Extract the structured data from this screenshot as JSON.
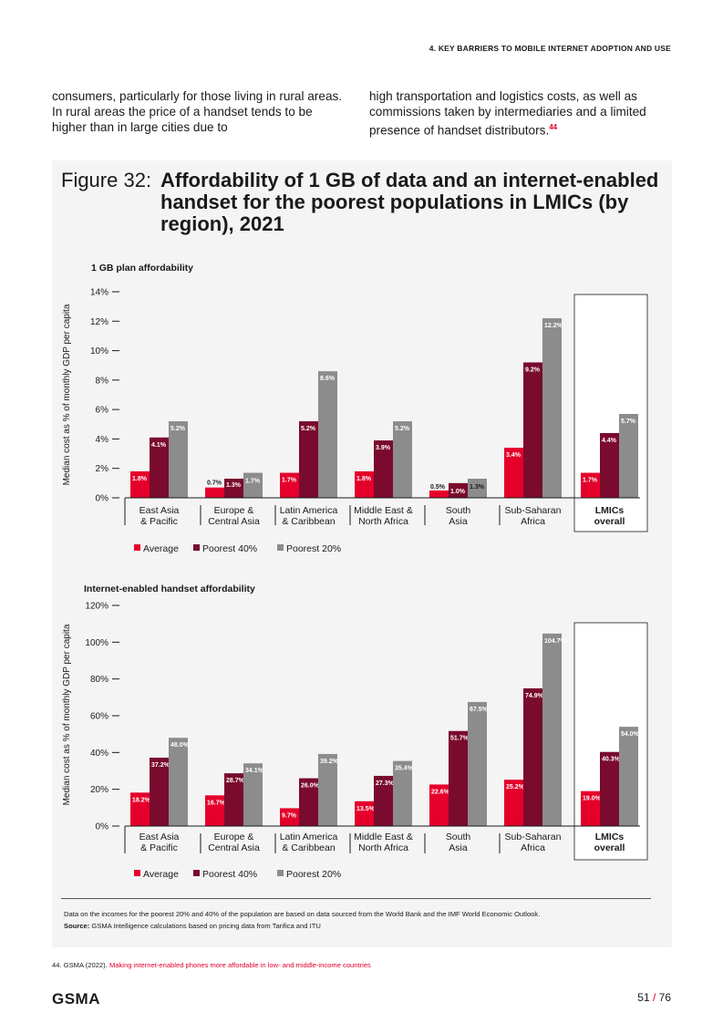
{
  "header": {
    "section": "4. KEY BARRIERS TO MOBILE INTERNET ADOPTION AND USE"
  },
  "intro": {
    "left": "consumers, particularly for those living in rural areas. In rural areas the price of a handset tends to be higher than in large cities due to",
    "right": "high transportation and logistics costs, as well as commissions taken by intermediaries and a limited presence of handset distributors.",
    "right_ref": "44"
  },
  "figure": {
    "label": "Figure 32:",
    "title": "Affordability of 1 GB of data and an internet-enabled handset for the poorest populations in LMICs (by region), 2021"
  },
  "colors": {
    "average": "#e4002b",
    "poorest40": "#7a0b2e",
    "poorest20": "#8c8c8c"
  },
  "chart_data": [
    {
      "type": "bar",
      "title": "1 GB plan affordability",
      "ylabel": "Median cost as % of monthly GDP per capita",
      "ylim": [
        0,
        14
      ],
      "yticks": [
        "0%",
        "2%",
        "4%",
        "6%",
        "8%",
        "10%",
        "12%",
        "14%"
      ],
      "categories": [
        [
          "East Asia",
          "& Pacific"
        ],
        [
          "Europe &",
          "Central Asia"
        ],
        [
          "Latin America",
          "& Caribbean"
        ],
        [
          "Middle East &",
          "North Africa"
        ],
        [
          "South",
          "Asia"
        ],
        [
          "Sub-Saharan",
          "Africa"
        ],
        [
          "LMICs",
          "overall"
        ]
      ],
      "series": [
        {
          "name": "Average",
          "values": [
            1.8,
            0.7,
            1.7,
            1.8,
            0.5,
            3.4,
            1.7
          ],
          "labels": [
            "1.8%",
            "0.7%",
            "1.7%",
            "1.8%",
            "0.5%",
            "3.4%",
            "1.7%"
          ]
        },
        {
          "name": "Poorest 40%",
          "values": [
            4.1,
            1.3,
            5.2,
            3.9,
            1.0,
            9.2,
            4.4
          ],
          "labels": [
            "4.1%",
            "1.3%",
            "5.2%",
            "3.9%",
            "1.0%",
            "9.2%",
            "4.4%"
          ]
        },
        {
          "name": "Poorest 20%",
          "values": [
            5.2,
            1.7,
            8.6,
            5.2,
            1.3,
            12.2,
            5.7
          ],
          "labels": [
            "5.2%",
            "1.7%",
            "8.6%",
            "5.2%",
            "1.3%",
            "12.2%",
            "5.7%"
          ]
        }
      ],
      "legend": [
        "Average",
        "Poorest 40%",
        "Poorest 20%"
      ],
      "highlight_category": 6
    },
    {
      "type": "bar",
      "title": "Internet-enabled handset affordability",
      "ylabel": "Median cost as % of monthly GDP per capita",
      "ylim": [
        0,
        120
      ],
      "yticks": [
        "0%",
        "20%",
        "40%",
        "60%",
        "80%",
        "100%",
        "120%"
      ],
      "categories": [
        [
          "East Asia",
          "& Pacific"
        ],
        [
          "Europe &",
          "Central Asia"
        ],
        [
          "Latin America",
          "& Caribbean"
        ],
        [
          "Middle East &",
          "North Africa"
        ],
        [
          "South",
          "Asia"
        ],
        [
          "Sub-Saharan",
          "Africa"
        ],
        [
          "LMICs",
          "overall"
        ]
      ],
      "series": [
        {
          "name": "Average",
          "values": [
            18.2,
            16.7,
            9.7,
            13.5,
            22.6,
            25.2,
            19.0
          ],
          "labels": [
            "18.2%",
            "16.7%",
            "9.7%",
            "13.5%",
            "22.6%",
            "25.2%",
            "19.0%"
          ]
        },
        {
          "name": "Poorest 40%",
          "values": [
            37.2,
            28.7,
            26.0,
            27.3,
            51.7,
            74.9,
            40.3
          ],
          "labels": [
            "37.2%",
            "28.7%",
            "26.0%",
            "27.3%",
            "51.7%",
            "74.9%",
            "40.3%"
          ]
        },
        {
          "name": "Poorest 20%",
          "values": [
            48.0,
            34.1,
            39.2,
            35.4,
            67.5,
            104.7,
            54.0
          ],
          "labels": [
            "48.0%",
            "34.1%",
            "39.2%",
            "35.4%",
            "67.5%",
            "104.7%",
            "54.0%"
          ]
        }
      ],
      "legend": [
        "Average",
        "Poorest 40%",
        "Poorest 20%"
      ],
      "highlight_category": 6
    }
  ],
  "notes": {
    "data_note": "Data on the incomes for the poorest 20% and 40% of the population are based on data sourced from the World Bank and the IMF World Economic Outlook.",
    "source_label": "Source:",
    "source_text": " GSMA Intelligence calculations based on pricing data from Tarifica and ITU"
  },
  "footnote": {
    "number": "44.",
    "prefix": "GSMA (2022).",
    "link_text": "Making internet-enabled phones more affordable in low- and middle-income countries"
  },
  "footer": {
    "logo": "GSMA",
    "page": "51",
    "total": "76"
  }
}
